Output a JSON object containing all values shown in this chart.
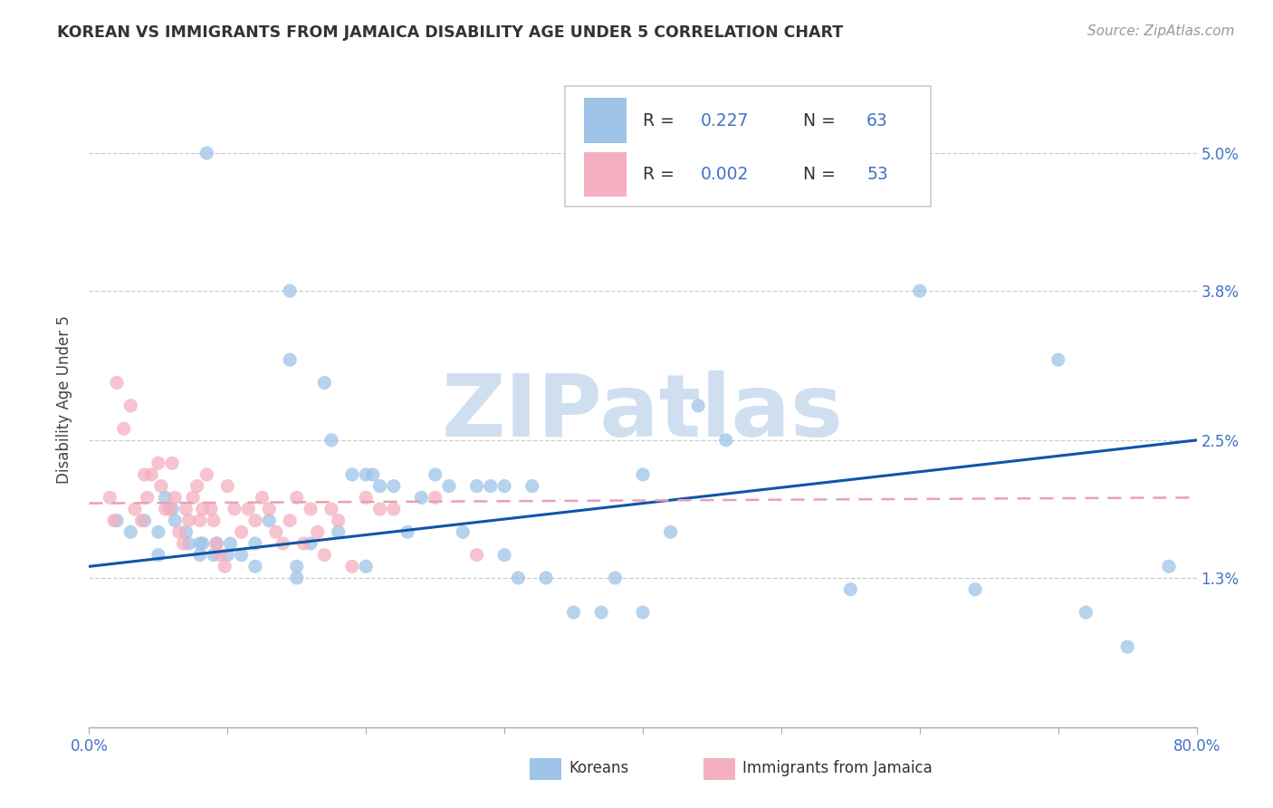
{
  "title": "KOREAN VS IMMIGRANTS FROM JAMAICA DISABILITY AGE UNDER 5 CORRELATION CHART",
  "source": "Source: ZipAtlas.com",
  "ylabel": "Disability Age Under 5",
  "yticks": [
    "1.3%",
    "2.5%",
    "3.8%",
    "5.0%"
  ],
  "ytick_vals": [
    0.013,
    0.025,
    0.038,
    0.05
  ],
  "xlim": [
    0.0,
    0.8
  ],
  "ylim": [
    0.0,
    0.057
  ],
  "legend_label1": "Koreans",
  "legend_label2": "Immigrants from Jamaica",
  "R1": "0.227",
  "N1": "63",
  "R2": "0.002",
  "N2": "53",
  "color_korean": "#9ec4e8",
  "color_jamaica": "#f4afc0",
  "color_korean_line": "#1155aa",
  "color_jamaica_line": "#e8a0b4",
  "background_color": "#ffffff",
  "watermark_text": "ZIPatlas",
  "watermark_color": "#d0dff0",
  "korean_x": [
    0.085,
    0.145,
    0.145,
    0.17,
    0.175,
    0.2,
    0.205,
    0.22,
    0.25,
    0.28,
    0.3,
    0.32,
    0.02,
    0.03,
    0.04,
    0.05,
    0.055,
    0.06,
    0.062,
    0.07,
    0.072,
    0.08,
    0.082,
    0.09,
    0.092,
    0.1,
    0.102,
    0.11,
    0.12,
    0.13,
    0.15,
    0.16,
    0.18,
    0.19,
    0.21,
    0.23,
    0.24,
    0.26,
    0.27,
    0.29,
    0.31,
    0.33,
    0.35,
    0.37,
    0.38,
    0.4,
    0.42,
    0.44,
    0.46,
    0.55,
    0.6,
    0.64,
    0.7,
    0.72,
    0.75,
    0.78,
    0.05,
    0.08,
    0.12,
    0.15,
    0.2,
    0.3,
    0.4
  ],
  "korean_y": [
    0.05,
    0.038,
    0.032,
    0.03,
    0.025,
    0.022,
    0.022,
    0.021,
    0.022,
    0.021,
    0.021,
    0.021,
    0.018,
    0.017,
    0.018,
    0.017,
    0.02,
    0.019,
    0.018,
    0.017,
    0.016,
    0.015,
    0.016,
    0.015,
    0.016,
    0.015,
    0.016,
    0.015,
    0.016,
    0.018,
    0.014,
    0.016,
    0.017,
    0.022,
    0.021,
    0.017,
    0.02,
    0.021,
    0.017,
    0.021,
    0.013,
    0.013,
    0.01,
    0.01,
    0.013,
    0.022,
    0.017,
    0.028,
    0.025,
    0.012,
    0.038,
    0.012,
    0.032,
    0.01,
    0.007,
    0.014,
    0.015,
    0.016,
    0.014,
    0.013,
    0.014,
    0.015,
    0.01
  ],
  "jamaica_x": [
    0.015,
    0.018,
    0.02,
    0.025,
    0.03,
    0.033,
    0.038,
    0.04,
    0.042,
    0.045,
    0.05,
    0.052,
    0.055,
    0.058,
    0.06,
    0.062,
    0.065,
    0.068,
    0.07,
    0.072,
    0.075,
    0.078,
    0.08,
    0.082,
    0.085,
    0.088,
    0.09,
    0.092,
    0.095,
    0.098,
    0.1,
    0.105,
    0.11,
    0.115,
    0.12,
    0.125,
    0.13,
    0.135,
    0.14,
    0.145,
    0.15,
    0.155,
    0.16,
    0.165,
    0.17,
    0.175,
    0.18,
    0.19,
    0.2,
    0.21,
    0.22,
    0.25,
    0.28
  ],
  "jamaica_y": [
    0.02,
    0.018,
    0.03,
    0.026,
    0.028,
    0.019,
    0.018,
    0.022,
    0.02,
    0.022,
    0.023,
    0.021,
    0.019,
    0.019,
    0.023,
    0.02,
    0.017,
    0.016,
    0.019,
    0.018,
    0.02,
    0.021,
    0.018,
    0.019,
    0.022,
    0.019,
    0.018,
    0.016,
    0.015,
    0.014,
    0.021,
    0.019,
    0.017,
    0.019,
    0.018,
    0.02,
    0.019,
    0.017,
    0.016,
    0.018,
    0.02,
    0.016,
    0.019,
    0.017,
    0.015,
    0.019,
    0.018,
    0.014,
    0.02,
    0.019,
    0.019,
    0.02,
    0.015
  ],
  "korean_line_x0": 0.0,
  "korean_line_y0": 0.014,
  "korean_line_x1": 0.8,
  "korean_line_y1": 0.025,
  "jamaica_line_x0": 0.0,
  "jamaica_line_y0": 0.0195,
  "jamaica_line_x1": 0.8,
  "jamaica_line_y1": 0.02
}
